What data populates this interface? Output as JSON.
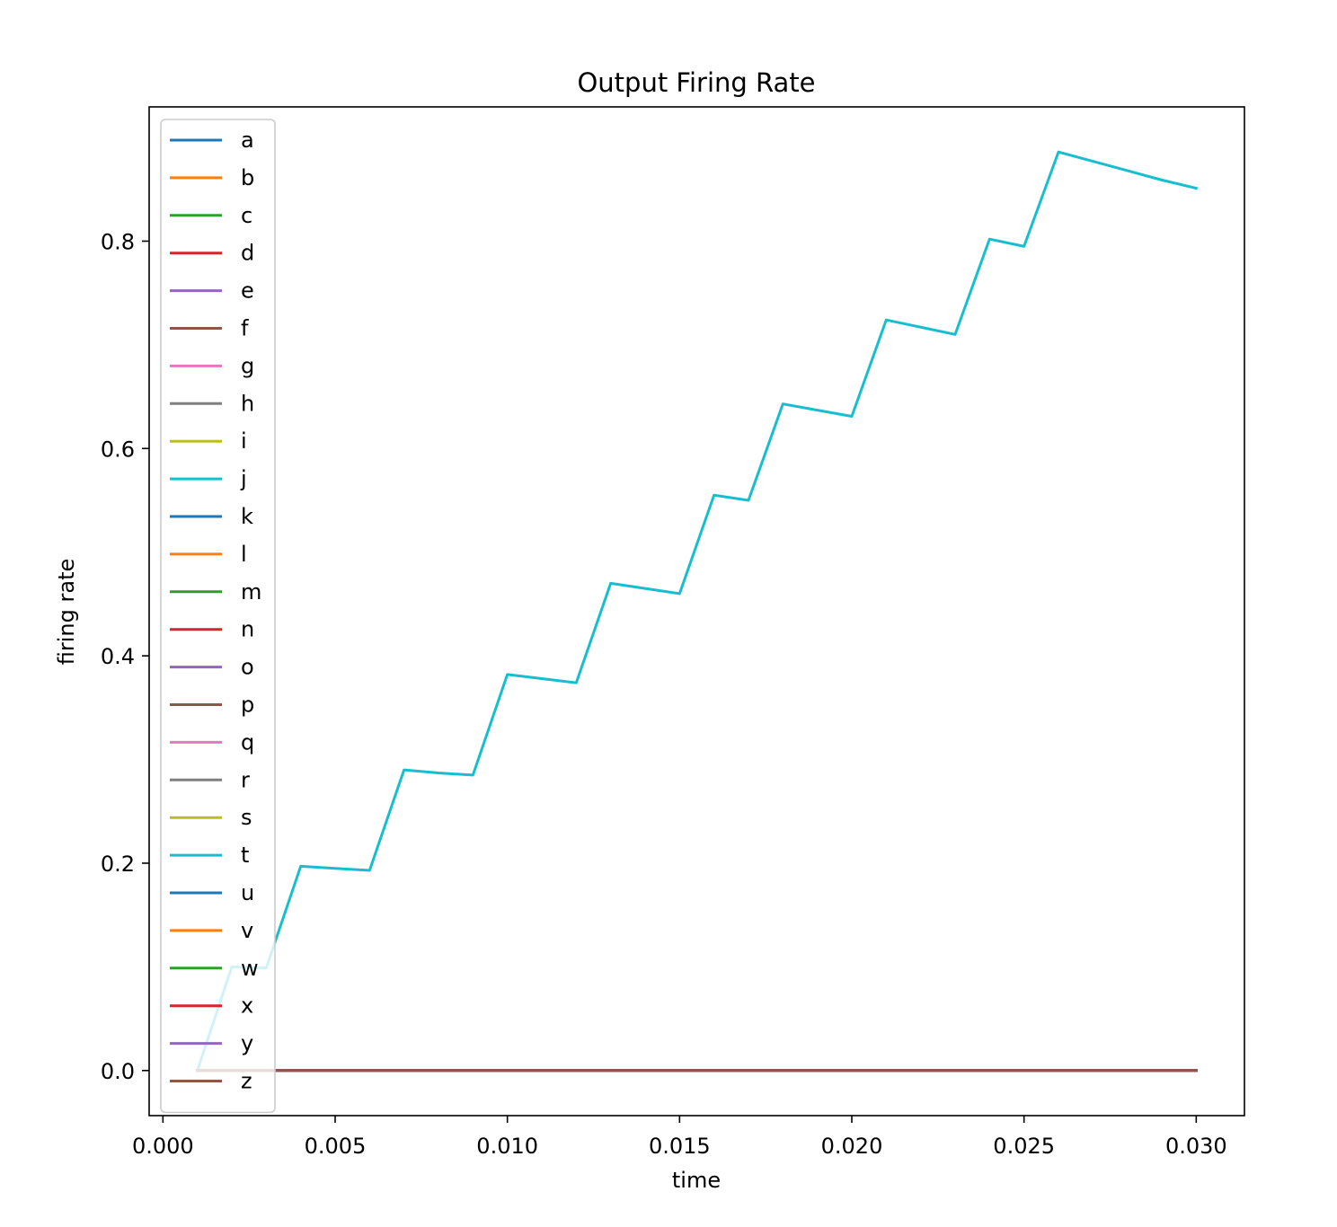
{
  "chart_data": {
    "type": "line",
    "title": "Output Firing Rate",
    "xlabel": "time",
    "ylabel": "firing rate",
    "xlim": [
      -0.0004,
      0.0314
    ],
    "ylim": [
      -0.0435,
      0.9295
    ],
    "xticks": [
      0.0,
      0.005,
      0.01,
      0.015,
      0.02,
      0.025,
      0.03
    ],
    "xtick_labels": [
      "0.000",
      "0.005",
      "0.010",
      "0.015",
      "0.020",
      "0.025",
      "0.030"
    ],
    "yticks": [
      0.0,
      0.2,
      0.4,
      0.6,
      0.8
    ],
    "ytick_labels": [
      "0.0",
      "0.2",
      "0.4",
      "0.6",
      "0.8"
    ],
    "grid": false,
    "legend_position": "upper-left",
    "x": [
      0.001,
      0.002,
      0.003,
      0.004,
      0.005,
      0.006,
      0.007,
      0.008,
      0.009,
      0.01,
      0.011,
      0.012,
      0.013,
      0.014,
      0.015,
      0.016,
      0.017,
      0.018,
      0.019,
      0.02,
      0.021,
      0.022,
      0.023,
      0.024,
      0.025,
      0.026,
      0.027,
      0.028,
      0.029,
      0.03
    ],
    "series": [
      {
        "name": "a",
        "color": "#1f77b4",
        "values": [
          0,
          0,
          0,
          0,
          0,
          0,
          0,
          0,
          0,
          0,
          0,
          0,
          0,
          0,
          0,
          0,
          0,
          0,
          0,
          0,
          0,
          0,
          0,
          0,
          0,
          0,
          0,
          0,
          0,
          0
        ]
      },
      {
        "name": "b",
        "color": "#ff7f0e",
        "values": [
          0,
          0,
          0,
          0,
          0,
          0,
          0,
          0,
          0,
          0,
          0,
          0,
          0,
          0,
          0,
          0,
          0,
          0,
          0,
          0,
          0,
          0,
          0,
          0,
          0,
          0,
          0,
          0,
          0,
          0
        ]
      },
      {
        "name": "c",
        "color": "#2ca02c",
        "values": [
          0,
          0,
          0,
          0,
          0,
          0,
          0,
          0,
          0,
          0,
          0,
          0,
          0,
          0,
          0,
          0,
          0,
          0,
          0,
          0,
          0,
          0,
          0,
          0,
          0,
          0,
          0,
          0,
          0,
          0
        ]
      },
      {
        "name": "d",
        "color": "#d62728",
        "values": [
          0,
          0,
          0,
          0,
          0,
          0,
          0,
          0,
          0,
          0,
          0,
          0,
          0,
          0,
          0,
          0,
          0,
          0,
          0,
          0,
          0,
          0,
          0,
          0,
          0,
          0,
          0,
          0,
          0,
          0
        ]
      },
      {
        "name": "e",
        "color": "#9467bd",
        "values": [
          0,
          0,
          0,
          0,
          0,
          0,
          0,
          0,
          0,
          0,
          0,
          0,
          0,
          0,
          0,
          0,
          0,
          0,
          0,
          0,
          0,
          0,
          0,
          0,
          0,
          0,
          0,
          0,
          0,
          0
        ]
      },
      {
        "name": "f",
        "color": "#8c564b",
        "values": [
          0,
          0,
          0,
          0,
          0,
          0,
          0,
          0,
          0,
          0,
          0,
          0,
          0,
          0,
          0,
          0,
          0,
          0,
          0,
          0,
          0,
          0,
          0,
          0,
          0,
          0,
          0,
          0,
          0,
          0
        ]
      },
      {
        "name": "g",
        "color": "#e377c2",
        "values": [
          0,
          0,
          0,
          0,
          0,
          0,
          0,
          0,
          0,
          0,
          0,
          0,
          0,
          0,
          0,
          0,
          0,
          0,
          0,
          0,
          0,
          0,
          0,
          0,
          0,
          0,
          0,
          0,
          0,
          0
        ]
      },
      {
        "name": "h",
        "color": "#7f7f7f",
        "values": [
          0,
          0,
          0,
          0,
          0,
          0,
          0,
          0,
          0,
          0,
          0,
          0,
          0,
          0,
          0,
          0,
          0,
          0,
          0,
          0,
          0,
          0,
          0,
          0,
          0,
          0,
          0,
          0,
          0,
          0
        ]
      },
      {
        "name": "i",
        "color": "#bcbd22",
        "values": [
          0,
          0,
          0,
          0,
          0,
          0,
          0,
          0,
          0,
          0,
          0,
          0,
          0,
          0,
          0,
          0,
          0,
          0,
          0,
          0,
          0,
          0,
          0,
          0,
          0,
          0,
          0,
          0,
          0,
          0
        ]
      },
      {
        "name": "j",
        "color": "#17becf",
        "values": [
          0.0,
          0.1,
          0.099,
          0.197,
          0.195,
          0.193,
          0.29,
          0.287,
          0.285,
          0.382,
          0.378,
          0.374,
          0.47,
          0.465,
          0.46,
          0.555,
          0.55,
          0.643,
          0.637,
          0.631,
          0.724,
          0.717,
          0.71,
          0.802,
          0.795,
          0.886,
          0.877,
          0.868,
          0.859,
          0.851
        ]
      },
      {
        "name": "k",
        "color": "#1f77b4",
        "values": [
          0,
          0,
          0,
          0,
          0,
          0,
          0,
          0,
          0,
          0,
          0,
          0,
          0,
          0,
          0,
          0,
          0,
          0,
          0,
          0,
          0,
          0,
          0,
          0,
          0,
          0,
          0,
          0,
          0,
          0
        ]
      },
      {
        "name": "l",
        "color": "#ff7f0e",
        "values": [
          0,
          0,
          0,
          0,
          0,
          0,
          0,
          0,
          0,
          0,
          0,
          0,
          0,
          0,
          0,
          0,
          0,
          0,
          0,
          0,
          0,
          0,
          0,
          0,
          0,
          0,
          0,
          0,
          0,
          0
        ]
      },
      {
        "name": "m",
        "color": "#2ca02c",
        "values": [
          0,
          0,
          0,
          0,
          0,
          0,
          0,
          0,
          0,
          0,
          0,
          0,
          0,
          0,
          0,
          0,
          0,
          0,
          0,
          0,
          0,
          0,
          0,
          0,
          0,
          0,
          0,
          0,
          0,
          0
        ]
      },
      {
        "name": "n",
        "color": "#d62728",
        "values": [
          0,
          0,
          0,
          0,
          0,
          0,
          0,
          0,
          0,
          0,
          0,
          0,
          0,
          0,
          0,
          0,
          0,
          0,
          0,
          0,
          0,
          0,
          0,
          0,
          0,
          0,
          0,
          0,
          0,
          0
        ]
      },
      {
        "name": "o",
        "color": "#9467bd",
        "values": [
          0,
          0,
          0,
          0,
          0,
          0,
          0,
          0,
          0,
          0,
          0,
          0,
          0,
          0,
          0,
          0,
          0,
          0,
          0,
          0,
          0,
          0,
          0,
          0,
          0,
          0,
          0,
          0,
          0,
          0
        ]
      },
      {
        "name": "p",
        "color": "#8c564b",
        "values": [
          0,
          0,
          0,
          0,
          0,
          0,
          0,
          0,
          0,
          0,
          0,
          0,
          0,
          0,
          0,
          0,
          0,
          0,
          0,
          0,
          0,
          0,
          0,
          0,
          0,
          0,
          0,
          0,
          0,
          0
        ]
      },
      {
        "name": "q",
        "color": "#e377c2",
        "values": [
          0,
          0,
          0,
          0,
          0,
          0,
          0,
          0,
          0,
          0,
          0,
          0,
          0,
          0,
          0,
          0,
          0,
          0,
          0,
          0,
          0,
          0,
          0,
          0,
          0,
          0,
          0,
          0,
          0,
          0
        ]
      },
      {
        "name": "r",
        "color": "#7f7f7f",
        "values": [
          0,
          0,
          0,
          0,
          0,
          0,
          0,
          0,
          0,
          0,
          0,
          0,
          0,
          0,
          0,
          0,
          0,
          0,
          0,
          0,
          0,
          0,
          0,
          0,
          0,
          0,
          0,
          0,
          0,
          0
        ]
      },
      {
        "name": "s",
        "color": "#bcbd22",
        "values": [
          0,
          0,
          0,
          0,
          0,
          0,
          0,
          0,
          0,
          0,
          0,
          0,
          0,
          0,
          0,
          0,
          0,
          0,
          0,
          0,
          0,
          0,
          0,
          0,
          0,
          0,
          0,
          0,
          0,
          0
        ]
      },
      {
        "name": "t",
        "color": "#17becf",
        "values": [
          0,
          0,
          0,
          0,
          0,
          0,
          0,
          0,
          0,
          0,
          0,
          0,
          0,
          0,
          0,
          0,
          0,
          0,
          0,
          0,
          0,
          0,
          0,
          0,
          0,
          0,
          0,
          0,
          0,
          0
        ]
      },
      {
        "name": "u",
        "color": "#1f77b4",
        "values": [
          0,
          0,
          0,
          0,
          0,
          0,
          0,
          0,
          0,
          0,
          0,
          0,
          0,
          0,
          0,
          0,
          0,
          0,
          0,
          0,
          0,
          0,
          0,
          0,
          0,
          0,
          0,
          0,
          0,
          0
        ]
      },
      {
        "name": "v",
        "color": "#ff7f0e",
        "values": [
          0,
          0,
          0,
          0,
          0,
          0,
          0,
          0,
          0,
          0,
          0,
          0,
          0,
          0,
          0,
          0,
          0,
          0,
          0,
          0,
          0,
          0,
          0,
          0,
          0,
          0,
          0,
          0,
          0,
          0
        ]
      },
      {
        "name": "w",
        "color": "#2ca02c",
        "values": [
          0,
          0,
          0,
          0,
          0,
          0,
          0,
          0,
          0,
          0,
          0,
          0,
          0,
          0,
          0,
          0,
          0,
          0,
          0,
          0,
          0,
          0,
          0,
          0,
          0,
          0,
          0,
          0,
          0,
          0
        ]
      },
      {
        "name": "x",
        "color": "#d62728",
        "values": [
          0,
          0,
          0,
          0,
          0,
          0,
          0,
          0,
          0,
          0,
          0,
          0,
          0,
          0,
          0,
          0,
          0,
          0,
          0,
          0,
          0,
          0,
          0,
          0,
          0,
          0,
          0,
          0,
          0,
          0
        ]
      },
      {
        "name": "y",
        "color": "#9467bd",
        "values": [
          0,
          0,
          0,
          0,
          0,
          0,
          0,
          0,
          0,
          0,
          0,
          0,
          0,
          0,
          0,
          0,
          0,
          0,
          0,
          0,
          0,
          0,
          0,
          0,
          0,
          0,
          0,
          0,
          0,
          0
        ]
      },
      {
        "name": "z",
        "color": "#8c564b",
        "values": [
          0,
          0,
          0,
          0,
          0,
          0,
          0,
          0,
          0,
          0,
          0,
          0,
          0,
          0,
          0,
          0,
          0,
          0,
          0,
          0,
          0,
          0,
          0,
          0,
          0,
          0,
          0,
          0,
          0,
          0
        ]
      }
    ]
  }
}
